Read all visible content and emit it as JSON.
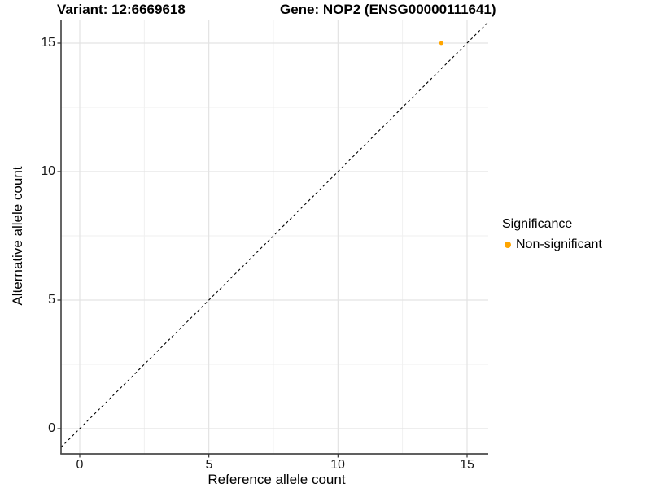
{
  "chart_data": {
    "type": "scatter",
    "title_left": "Variant: 12:6669618",
    "title_right": "Gene: NOP2 (ENSG00000111641)",
    "xlabel": "Reference allele count",
    "ylabel": "Alternative allele count",
    "x_ticks": [
      0,
      5,
      10,
      15
    ],
    "y_ticks": [
      0,
      5,
      10,
      15
    ],
    "x_minor_ticks": [
      2.5,
      7.5,
      12.5
    ],
    "y_minor_ticks": [
      2.5,
      7.5,
      12.5
    ],
    "xlim": [
      -0.73,
      15.82
    ],
    "ylim": [
      -0.98,
      15.92
    ],
    "grid": "major+minor",
    "series": [
      {
        "name": "Non-significant",
        "color": "#FFA500"
      }
    ],
    "points": [
      {
        "x": 14,
        "y": 15,
        "series": "Non-significant"
      }
    ],
    "identity_line": {
      "slope": 1,
      "intercept": 0,
      "style": "dashed",
      "color": "#000000"
    },
    "legend": {
      "title": "Significance",
      "position": "right",
      "items": [
        {
          "label": "Non-significant",
          "color": "#FFA500"
        }
      ]
    },
    "colors": {
      "background": "#FFFFFF",
      "grid_major": "#E3E3E3",
      "grid_minor": "#EFEFEF",
      "axis": "#4A4A4A",
      "text": "#000000",
      "point_non_significant": "#FFA500"
    }
  }
}
